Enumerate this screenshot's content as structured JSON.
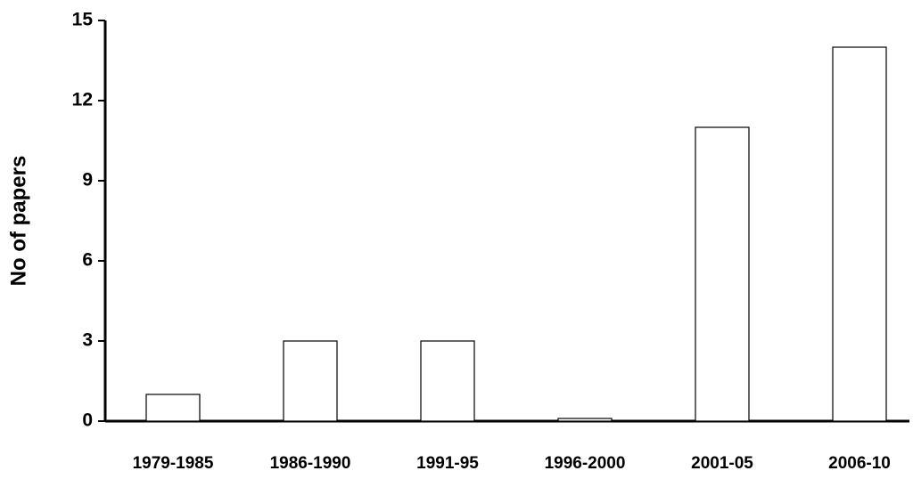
{
  "chart_data": {
    "type": "bar",
    "y_label": "No of papers",
    "categories": [
      "1979-1985",
      "1986-1990",
      "1991-95",
      "1996-2000",
      "2001-05",
      "2006-10"
    ],
    "values": [
      1,
      3,
      3,
      0.1,
      11,
      14
    ],
    "color": "#ffffff",
    "ylim": [
      0,
      15
    ],
    "yticks": [
      0,
      3,
      6,
      9,
      12,
      15
    ],
    "grid": false
  }
}
